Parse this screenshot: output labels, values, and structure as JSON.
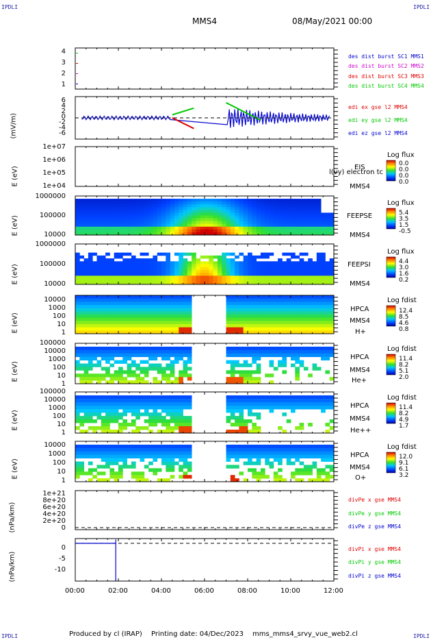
{
  "header": {
    "corner_label": "IPDLI",
    "spacecraft": "MMS4",
    "datetime": "08/May/2021 00:00"
  },
  "footer": {
    "produced": "Produced by cl (IRAP)",
    "printing": "Printing date: 04/Dec/2023",
    "file": "mms_mms4_srvy_vue_web2.cl"
  },
  "colors": {
    "blue": "#0000d0",
    "green": "#00c800",
    "red": "#e00000",
    "magenta": "#d000d0"
  },
  "chart_data": [
    {
      "type": "line",
      "panel": "burst",
      "yticks": [
        "4",
        "3",
        "2",
        "1"
      ],
      "ylim": [
        0.5,
        4.5
      ],
      "legend": [
        {
          "text": "des dist burst SC1 MMS1",
          "color": "#0000d0"
        },
        {
          "text": "des dist burst SC2 MMS2",
          "color": "#d000d0"
        },
        {
          "text": "des dist burst SC3 MMS3",
          "color": "#e00000"
        },
        {
          "text": "des dist burst SC4 MMS4",
          "color": "#00c800"
        }
      ]
    },
    {
      "type": "line",
      "panel": "electric field",
      "ylabel": "(mV/m)",
      "yticks": [
        "6",
        "4",
        "2",
        "0",
        "-2",
        "-4",
        "-6"
      ],
      "ylim": [
        -7,
        7
      ],
      "legend": [
        {
          "text": "edi ex gse l2 MMS4",
          "color": "#e00000"
        },
        {
          "text": "edi ey gse l2 MMS4",
          "color": "#00c800"
        },
        {
          "text": "edi ez gse l2 MMS4",
          "color": "#0000d0"
        }
      ]
    },
    {
      "type": "heatmap",
      "panel": "EIS",
      "ylabel": "E (eV)",
      "yticks": [
        "1e+07",
        "1e+06",
        "1e+05",
        "1e+04"
      ],
      "labels": [
        "EIS",
        "MMS4"
      ],
      "overlay_text": "l(vy) electron tc",
      "cbar_title": "Log flux",
      "cbar_values": [
        "0.0",
        "0.0",
        "0.0",
        "0.0"
      ]
    },
    {
      "type": "heatmap",
      "panel": "FEEPSE",
      "ylabel": "E (eV)",
      "yticks": [
        "1000000",
        "100000",
        "10000"
      ],
      "labels": [
        "FEEPSE",
        "MMS4"
      ],
      "cbar_title": "Log flux",
      "cbar_values": [
        "5.4",
        "3.5",
        "1.5",
        "-0.5"
      ]
    },
    {
      "type": "heatmap",
      "panel": "FEEPSI",
      "ylabel": "E (eV)",
      "yticks": [
        "1000000",
        "100000",
        "10000"
      ],
      "labels": [
        "FEEPSI",
        "MMS4"
      ],
      "cbar_title": "Log flux",
      "cbar_values": [
        "4.4",
        "3.0",
        "1.6",
        "0.2"
      ]
    },
    {
      "type": "heatmap",
      "panel": "HPCA H+",
      "ylabel": "E (eV)",
      "yticks": [
        "10000",
        "1000",
        "100",
        "10",
        "1"
      ],
      "labels": [
        "HPCA",
        "MMS4",
        "H+"
      ],
      "cbar_title": "Log fdist",
      "cbar_values": [
        "12.4",
        "8.5",
        "4.6",
        "0.8"
      ]
    },
    {
      "type": "heatmap",
      "panel": "HPCA He+",
      "ylabel": "E (eV)",
      "yticks": [
        "100000",
        "10000",
        "1000",
        "100",
        "10",
        "1"
      ],
      "labels": [
        "HPCA",
        "MMS4",
        "He+"
      ],
      "cbar_title": "Log fdist",
      "cbar_values": [
        "11.4",
        "8.2",
        "5.1",
        "2.0"
      ]
    },
    {
      "type": "heatmap",
      "panel": "HPCA He++",
      "ylabel": "E (eV)",
      "yticks": [
        "100000",
        "10000",
        "1000",
        "100",
        "10",
        "1"
      ],
      "labels": [
        "HPCA",
        "MMS4",
        "He++"
      ],
      "cbar_title": "Log fdist",
      "cbar_values": [
        "11.4",
        "8.2",
        "4.9",
        "1.7"
      ]
    },
    {
      "type": "heatmap",
      "panel": "HPCA O+",
      "ylabel": "E (eV)",
      "yticks": [
        "10000",
        "1000",
        "100",
        "10",
        "1"
      ],
      "labels": [
        "HPCA",
        "MMS4",
        "O+"
      ],
      "cbar_title": "Log fdist",
      "cbar_values": [
        "12.0",
        "9.1",
        "6.1",
        "3.2"
      ]
    },
    {
      "type": "line",
      "panel": "divPe",
      "ylabel": "(nPa/km)",
      "yticks": [
        "1e+21",
        "8e+20",
        "6e+20",
        "4e+20",
        "2e+20",
        "0"
      ],
      "ylim": [
        0,
        1e+21
      ],
      "legend": [
        {
          "text": "divPe x gse MMS4",
          "color": "#e00000"
        },
        {
          "text": "divPe y gse MMS4",
          "color": "#00c800"
        },
        {
          "text": "divPe z gse MMS4",
          "color": "#0000d0"
        }
      ]
    },
    {
      "type": "line",
      "panel": "divPi",
      "ylabel": "(nPa/km)",
      "yticks": [
        "0",
        "-5",
        "-10"
      ],
      "ylim": [
        -12,
        1.5
      ],
      "legend": [
        {
          "text": "divPi x gse MMS4",
          "color": "#e00000"
        },
        {
          "text": "divPi y gse MMS4",
          "color": "#00c800"
        },
        {
          "text": "divPi z gse MMS4",
          "color": "#0000d0"
        }
      ]
    }
  ],
  "xaxis": {
    "ticks": [
      "00:00",
      "02:00",
      "04:00",
      "06:00",
      "08:00",
      "10:00",
      "12:00"
    ],
    "range_hours": [
      0,
      12
    ]
  }
}
